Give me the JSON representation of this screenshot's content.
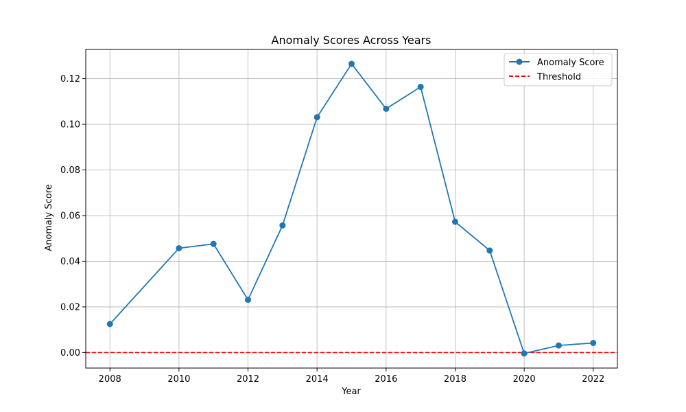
{
  "chart_data": {
    "type": "line",
    "title": "Anomaly Scores Across Years",
    "xlabel": "Year",
    "ylabel": "Anomaly Score",
    "x": [
      2008,
      2010,
      2011,
      2012,
      2013,
      2014,
      2015,
      2016,
      2017,
      2018,
      2019,
      2020,
      2021,
      2022
    ],
    "series": [
      {
        "name": "Anomaly Score",
        "values": [
          0.0125,
          0.0457,
          0.0476,
          0.0231,
          0.0557,
          0.1031,
          0.1265,
          0.1068,
          0.1164,
          0.0573,
          0.0447,
          -0.0004,
          0.0031,
          0.0042
        ],
        "color": "#1f77b4",
        "marker": "circle"
      }
    ],
    "threshold": {
      "name": "Threshold",
      "value": 0.0,
      "color": "#ff0000",
      "style": "dashed"
    },
    "xlim": [
      2007.3,
      2022.7
    ],
    "ylim": [
      -0.0068,
      0.1328
    ],
    "xticks": [
      2008,
      2010,
      2012,
      2014,
      2016,
      2018,
      2020,
      2022
    ],
    "yticks": [
      0.0,
      0.02,
      0.04,
      0.06,
      0.08,
      0.1,
      0.12
    ],
    "ytick_labels": [
      "0.00",
      "0.02",
      "0.04",
      "0.06",
      "0.08",
      "0.10",
      "0.12"
    ],
    "grid": true,
    "legend_position": "top-right"
  }
}
